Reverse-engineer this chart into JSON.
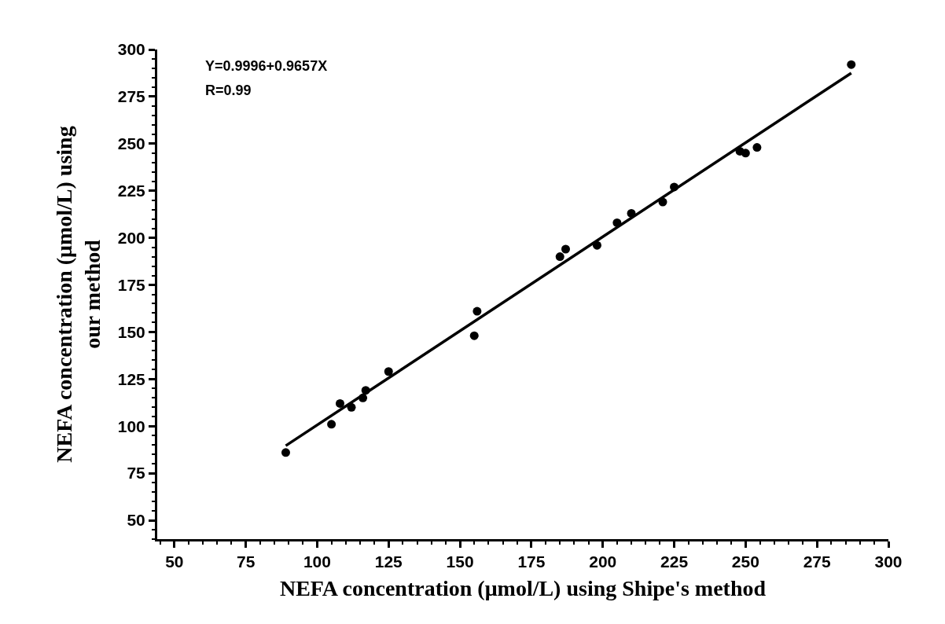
{
  "chart_data": {
    "type": "scatter",
    "xlabel": "NEFA concentration (μmol/L) using Shipe's method",
    "ylabel": "NEFA concentration (μmol/L) using\nour method",
    "annotations": [
      "Y=0.9996+0.9657X",
      "R=0.99"
    ],
    "x": [
      89,
      105,
      108,
      112,
      116,
      117,
      125,
      155,
      156,
      185,
      187,
      198,
      205,
      210,
      221,
      225,
      248,
      250,
      254,
      287
    ],
    "series": [
      {
        "color": "#000000",
        "values": [
          86,
          101,
          112,
          110,
          115,
          119,
          129,
          148,
          161,
          190,
          194,
          196,
          208,
          213,
          219,
          227,
          246,
          245,
          248,
          292
        ]
      },
      {
        "type": "line",
        "marker": "none",
        "color": "#000000",
        "x": [
          89,
          287
        ],
        "values": [
          89.6,
          287.5
        ]
      }
    ],
    "xlim": [
      44,
      300
    ],
    "ylim": [
      40,
      300
    ],
    "xticks": [
      50,
      75,
      100,
      125,
      150,
      175,
      200,
      225,
      250,
      275,
      300
    ],
    "yticks": [
      50,
      75,
      100,
      125,
      150,
      175,
      200,
      225,
      250,
      275,
      300
    ],
    "marker": "circle",
    "line_style": "solid"
  }
}
